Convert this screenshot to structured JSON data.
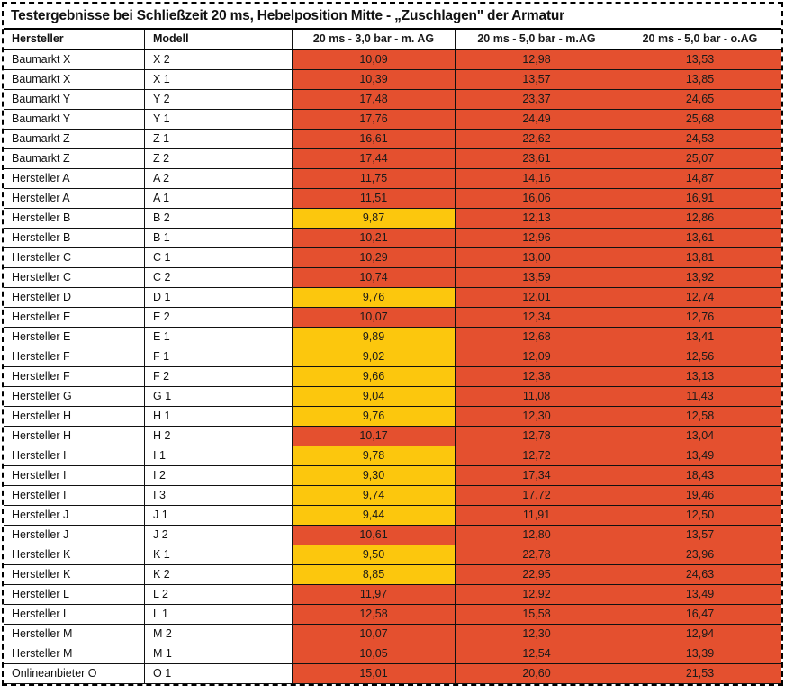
{
  "chart_data": {
    "type": "table",
    "title": "Testergebnisse bei Schließzeit 20 ms, Hebelposition Mitte - „Zuschlagen\" der Armatur",
    "columns": [
      "Hersteller",
      "Modell",
      "20 ms - 3,0 bar - m. AG",
      "20 ms - 5,0 bar - m.AG",
      "20 ms - 5,0 bar - o.AG"
    ],
    "cell_colors": {
      "red": "#e4502f",
      "yellow": "#fcc70d"
    },
    "rows": [
      {
        "hersteller": "Baumarkt X",
        "modell": "X 2",
        "values": [
          {
            "value": "10,09",
            "color": "red"
          },
          {
            "value": "12,98",
            "color": "red"
          },
          {
            "value": "13,53",
            "color": "red"
          }
        ]
      },
      {
        "hersteller": "Baumarkt X",
        "modell": "X 1",
        "values": [
          {
            "value": "10,39",
            "color": "red"
          },
          {
            "value": "13,57",
            "color": "red"
          },
          {
            "value": "13,85",
            "color": "red"
          }
        ]
      },
      {
        "hersteller": "Baumarkt Y",
        "modell": "Y 2",
        "values": [
          {
            "value": "17,48",
            "color": "red"
          },
          {
            "value": "23,37",
            "color": "red"
          },
          {
            "value": "24,65",
            "color": "red"
          }
        ]
      },
      {
        "hersteller": "Baumarkt Y",
        "modell": "Y 1",
        "values": [
          {
            "value": "17,76",
            "color": "red"
          },
          {
            "value": "24,49",
            "color": "red"
          },
          {
            "value": "25,68",
            "color": "red"
          }
        ]
      },
      {
        "hersteller": "Baumarkt Z",
        "modell": "Z 1",
        "values": [
          {
            "value": "16,61",
            "color": "red"
          },
          {
            "value": "22,62",
            "color": "red"
          },
          {
            "value": "24,53",
            "color": "red"
          }
        ]
      },
      {
        "hersteller": "Baumarkt Z",
        "modell": "Z 2",
        "values": [
          {
            "value": "17,44",
            "color": "red"
          },
          {
            "value": "23,61",
            "color": "red"
          },
          {
            "value": "25,07",
            "color": "red"
          }
        ]
      },
      {
        "hersteller": "Hersteller A",
        "modell": "A 2",
        "values": [
          {
            "value": "11,75",
            "color": "red"
          },
          {
            "value": "14,16",
            "color": "red"
          },
          {
            "value": "14,87",
            "color": "red"
          }
        ]
      },
      {
        "hersteller": "Hersteller A",
        "modell": "A 1",
        "values": [
          {
            "value": "11,51",
            "color": "red"
          },
          {
            "value": "16,06",
            "color": "red"
          },
          {
            "value": "16,91",
            "color": "red"
          }
        ]
      },
      {
        "hersteller": "Hersteller B",
        "modell": "B 2",
        "values": [
          {
            "value": "9,87",
            "color": "yellow"
          },
          {
            "value": "12,13",
            "color": "red"
          },
          {
            "value": "12,86",
            "color": "red"
          }
        ]
      },
      {
        "hersteller": "Hersteller B",
        "modell": "B 1",
        "values": [
          {
            "value": "10,21",
            "color": "red"
          },
          {
            "value": "12,96",
            "color": "red"
          },
          {
            "value": "13,61",
            "color": "red"
          }
        ]
      },
      {
        "hersteller": "Hersteller C",
        "modell": "C 1",
        "values": [
          {
            "value": "10,29",
            "color": "red"
          },
          {
            "value": "13,00",
            "color": "red"
          },
          {
            "value": "13,81",
            "color": "red"
          }
        ]
      },
      {
        "hersteller": "Hersteller C",
        "modell": "C 2",
        "values": [
          {
            "value": "10,74",
            "color": "red"
          },
          {
            "value": "13,59",
            "color": "red"
          },
          {
            "value": "13,92",
            "color": "red"
          }
        ]
      },
      {
        "hersteller": "Hersteller D",
        "modell": "D 1",
        "values": [
          {
            "value": "9,76",
            "color": "yellow"
          },
          {
            "value": "12,01",
            "color": "red"
          },
          {
            "value": "12,74",
            "color": "red"
          }
        ]
      },
      {
        "hersteller": "Hersteller E",
        "modell": "E 2",
        "values": [
          {
            "value": "10,07",
            "color": "red"
          },
          {
            "value": "12,34",
            "color": "red"
          },
          {
            "value": "12,76",
            "color": "red"
          }
        ]
      },
      {
        "hersteller": "Hersteller E",
        "modell": "E 1",
        "values": [
          {
            "value": "9,89",
            "color": "yellow"
          },
          {
            "value": "12,68",
            "color": "red"
          },
          {
            "value": "13,41",
            "color": "red"
          }
        ]
      },
      {
        "hersteller": "Hersteller F",
        "modell": "F 1",
        "values": [
          {
            "value": "9,02",
            "color": "yellow"
          },
          {
            "value": "12,09",
            "color": "red"
          },
          {
            "value": "12,56",
            "color": "red"
          }
        ]
      },
      {
        "hersteller": "Hersteller F",
        "modell": "F 2",
        "values": [
          {
            "value": "9,66",
            "color": "yellow"
          },
          {
            "value": "12,38",
            "color": "red"
          },
          {
            "value": "13,13",
            "color": "red"
          }
        ]
      },
      {
        "hersteller": "Hersteller G",
        "modell": "G 1",
        "values": [
          {
            "value": "9,04",
            "color": "yellow"
          },
          {
            "value": "11,08",
            "color": "red"
          },
          {
            "value": "11,43",
            "color": "red"
          }
        ]
      },
      {
        "hersteller": "Hersteller H",
        "modell": "H 1",
        "values": [
          {
            "value": "9,76",
            "color": "yellow"
          },
          {
            "value": "12,30",
            "color": "red"
          },
          {
            "value": "12,58",
            "color": "red"
          }
        ]
      },
      {
        "hersteller": "Hersteller H",
        "modell": "H 2",
        "values": [
          {
            "value": "10,17",
            "color": "red"
          },
          {
            "value": "12,78",
            "color": "red"
          },
          {
            "value": "13,04",
            "color": "red"
          }
        ]
      },
      {
        "hersteller": "Hersteller I",
        "modell": "I 1",
        "values": [
          {
            "value": "9,78",
            "color": "yellow"
          },
          {
            "value": "12,72",
            "color": "red"
          },
          {
            "value": "13,49",
            "color": "red"
          }
        ]
      },
      {
        "hersteller": "Hersteller I",
        "modell": "I 2",
        "values": [
          {
            "value": "9,30",
            "color": "yellow"
          },
          {
            "value": "17,34",
            "color": "red"
          },
          {
            "value": "18,43",
            "color": "red"
          }
        ]
      },
      {
        "hersteller": "Hersteller I",
        "modell": "I 3",
        "values": [
          {
            "value": "9,74",
            "color": "yellow"
          },
          {
            "value": "17,72",
            "color": "red"
          },
          {
            "value": "19,46",
            "color": "red"
          }
        ]
      },
      {
        "hersteller": "Hersteller J",
        "modell": "J 1",
        "values": [
          {
            "value": "9,44",
            "color": "yellow"
          },
          {
            "value": "11,91",
            "color": "red"
          },
          {
            "value": "12,50",
            "color": "red"
          }
        ]
      },
      {
        "hersteller": "Hersteller J",
        "modell": "J 2",
        "values": [
          {
            "value": "10,61",
            "color": "red"
          },
          {
            "value": "12,80",
            "color": "red"
          },
          {
            "value": "13,57",
            "color": "red"
          }
        ]
      },
      {
        "hersteller": "Hersteller K",
        "modell": "K 1",
        "values": [
          {
            "value": "9,50",
            "color": "yellow"
          },
          {
            "value": "22,78",
            "color": "red"
          },
          {
            "value": "23,96",
            "color": "red"
          }
        ]
      },
      {
        "hersteller": "Hersteller K",
        "modell": "K 2",
        "values": [
          {
            "value": "8,85",
            "color": "yellow"
          },
          {
            "value": "22,95",
            "color": "red"
          },
          {
            "value": "24,63",
            "color": "red"
          }
        ]
      },
      {
        "hersteller": "Hersteller L",
        "modell": "L 2",
        "values": [
          {
            "value": "11,97",
            "color": "red"
          },
          {
            "value": "12,92",
            "color": "red"
          },
          {
            "value": "13,49",
            "color": "red"
          }
        ]
      },
      {
        "hersteller": "Hersteller L",
        "modell": "L 1",
        "values": [
          {
            "value": "12,58",
            "color": "red"
          },
          {
            "value": "15,58",
            "color": "red"
          },
          {
            "value": "16,47",
            "color": "red"
          }
        ]
      },
      {
        "hersteller": "Hersteller M",
        "modell": "M 2",
        "values": [
          {
            "value": "10,07",
            "color": "red"
          },
          {
            "value": "12,30",
            "color": "red"
          },
          {
            "value": "12,94",
            "color": "red"
          }
        ]
      },
      {
        "hersteller": "Hersteller M",
        "modell": "M 1",
        "values": [
          {
            "value": "10,05",
            "color": "red"
          },
          {
            "value": "12,54",
            "color": "red"
          },
          {
            "value": "13,39",
            "color": "red"
          }
        ]
      },
      {
        "hersteller": "Onlineanbieter O",
        "modell": "O 1",
        "values": [
          {
            "value": "15,01",
            "color": "red"
          },
          {
            "value": "20,60",
            "color": "red"
          },
          {
            "value": "21,53",
            "color": "red"
          }
        ]
      }
    ]
  }
}
